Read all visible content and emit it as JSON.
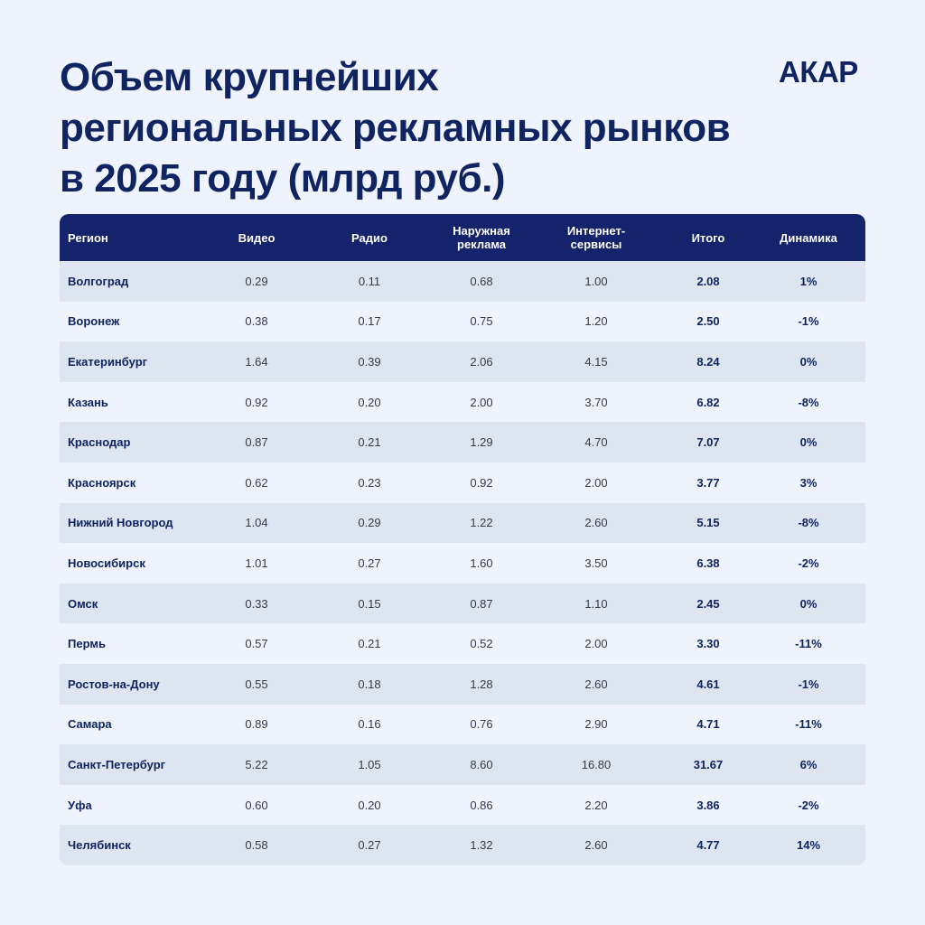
{
  "title_lines": [
    "Объем крупнейших",
    "региональных рекламных рынков",
    "в 2025 году (млрд руб.)"
  ],
  "logo": "АКАР",
  "colors": {
    "background": "#eef3fd",
    "header_bg": "#14236b",
    "row_odd": "#dce5f0",
    "row_even": "#eef3fd",
    "text_dark": "#0f2460"
  },
  "chart_data": {
    "type": "table",
    "title": "Объем крупнейших региональных рекламных рынков в 2025 году (млрд руб.)",
    "columns": [
      "Регион",
      "Видео",
      "Радио",
      "Наружная реклама",
      "Интернет-сервисы",
      "Итого",
      "Динамика"
    ],
    "rows": [
      [
        "Волгоград",
        "0.29",
        "0.11",
        "0.68",
        "1.00",
        "2.08",
        "1%"
      ],
      [
        "Воронеж",
        "0.38",
        "0.17",
        "0.75",
        "1.20",
        "2.50",
        "-1%"
      ],
      [
        "Екатеринбург",
        "1.64",
        "0.39",
        "2.06",
        "4.15",
        "8.24",
        "0%"
      ],
      [
        "Казань",
        "0.92",
        "0.20",
        "2.00",
        "3.70",
        "6.82",
        "-8%"
      ],
      [
        "Краснодар",
        "0.87",
        "0.21",
        "1.29",
        "4.70",
        "7.07",
        "0%"
      ],
      [
        "Красноярск",
        "0.62",
        "0.23",
        "0.92",
        "2.00",
        "3.77",
        "3%"
      ],
      [
        "Нижний Новгород",
        "1.04",
        "0.29",
        "1.22",
        "2.60",
        "5.15",
        "-8%"
      ],
      [
        "Новосибирск",
        "1.01",
        "0.27",
        "1.60",
        "3.50",
        "6.38",
        "-2%"
      ],
      [
        "Омск",
        "0.33",
        "0.15",
        "0.87",
        "1.10",
        "2.45",
        "0%"
      ],
      [
        "Пермь",
        "0.57",
        "0.21",
        "0.52",
        "2.00",
        "3.30",
        "-11%"
      ],
      [
        "Ростов-на-Дону",
        "0.55",
        "0.18",
        "1.28",
        "2.60",
        "4.61",
        "-1%"
      ],
      [
        "Самара",
        "0.89",
        "0.16",
        "0.76",
        "2.90",
        "4.71",
        "-11%"
      ],
      [
        "Санкт-Петербург",
        "5.22",
        "1.05",
        "8.60",
        "16.80",
        "31.67",
        "6%"
      ],
      [
        "Уфа",
        "0.60",
        "0.20",
        "0.86",
        "2.20",
        "3.86",
        "-2%"
      ],
      [
        "Челябинск",
        "0.58",
        "0.27",
        "1.32",
        "2.60",
        "4.77",
        "14%"
      ]
    ]
  }
}
